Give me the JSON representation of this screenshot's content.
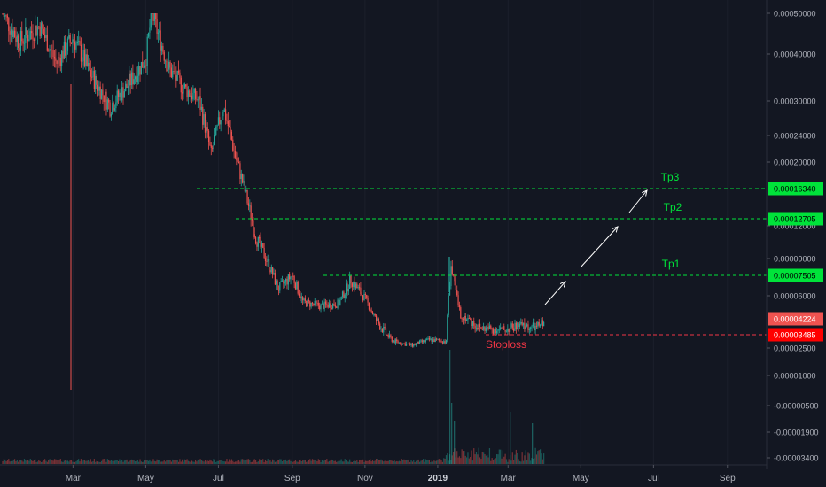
{
  "colors": {
    "background": "#131722",
    "up": "#26a69a",
    "down": "#ef5350",
    "target_line": "#00e33a",
    "stop_line": "#f23645",
    "price_tag_current": "#ef5350",
    "price_tag_stop": "#ff0000",
    "price_tag_target": "#00e33a",
    "arrow": "#ffffff",
    "axis_text": "#b2b5be"
  },
  "chart_data": {
    "type": "candlestick",
    "y_scale": "log-like",
    "y_ticks": [
      "0.00050000",
      "0.00040000",
      "0.00030000",
      "0.00024000",
      "0.00020000",
      "0.00012000",
      "0.00009000",
      "0.00006000",
      "0.00002500",
      "0.00001000",
      "-0.00000500",
      "-0.00001900",
      "-0.00003400"
    ],
    "x_ticks": [
      {
        "label": "Mar",
        "bold": false
      },
      {
        "label": "May",
        "bold": false
      },
      {
        "label": "Jul",
        "bold": false
      },
      {
        "label": "Sep",
        "bold": false
      },
      {
        "label": "Nov",
        "bold": false
      },
      {
        "label": "2019",
        "bold": true
      },
      {
        "label": "Mar",
        "bold": false
      },
      {
        "label": "May",
        "bold": false
      },
      {
        "label": "Jul",
        "bold": false
      },
      {
        "label": "Sep",
        "bold": false
      }
    ],
    "price_path": [
      [
        "2018-01-01",
        0.0005
      ],
      [
        "2018-01-15",
        0.00043
      ],
      [
        "2018-02-01",
        0.00047
      ],
      [
        "2018-02-15",
        0.00038
      ],
      [
        "2018-03-01",
        0.00044
      ],
      [
        "2018-03-15",
        0.00036
      ],
      [
        "2018-04-01",
        0.00029
      ],
      [
        "2018-04-15",
        0.00033
      ],
      [
        "2018-05-01",
        0.00039
      ],
      [
        "2018-05-06",
        0.0005
      ],
      [
        "2018-05-20",
        0.00037
      ],
      [
        "2018-06-01",
        0.00033
      ],
      [
        "2018-06-15",
        0.0003
      ],
      [
        "2018-06-25",
        0.00021
      ],
      [
        "2018-07-05",
        0.00029
      ],
      [
        "2018-07-15",
        0.00021
      ],
      [
        "2018-07-25",
        0.00015
      ],
      [
        "2018-08-01",
        0.00011
      ],
      [
        "2018-08-10",
        9e-05
      ],
      [
        "2018-08-20",
        6.5e-05
      ],
      [
        "2018-09-01",
        7.5e-05
      ],
      [
        "2018-09-10",
        5.5e-05
      ],
      [
        "2018-09-25",
        5.2e-05
      ],
      [
        "2018-10-10",
        5.4e-05
      ],
      [
        "2018-10-20",
        7.2e-05
      ],
      [
        "2018-11-01",
        5.8e-05
      ],
      [
        "2018-11-10",
        4.2e-05
      ],
      [
        "2018-11-25",
        3e-05
      ],
      [
        "2018-12-10",
        2.7e-05
      ],
      [
        "2018-12-25",
        3.1e-05
      ],
      [
        "2019-01-08",
        3e-05
      ],
      [
        "2019-01-12",
        8.2e-05
      ],
      [
        "2019-01-20",
        4.5e-05
      ],
      [
        "2019-02-05",
        3.8e-05
      ],
      [
        "2019-02-25",
        3.7e-05
      ],
      [
        "2019-03-10",
        3.9e-05
      ],
      [
        "2019-03-25",
        3.8e-05
      ],
      [
        "2019-04-01",
        4.2e-05
      ]
    ],
    "annotations": {
      "take_profits": [
        {
          "label": "Tp3",
          "price": "0.00016340"
        },
        {
          "label": "Tp2",
          "price": "0.00012705"
        },
        {
          "label": "Tp1",
          "price": "0.00007505"
        }
      ],
      "stoploss": {
        "label": "Stoploss",
        "price": "0.00003485"
      },
      "current_price": "0.00004224"
    }
  }
}
